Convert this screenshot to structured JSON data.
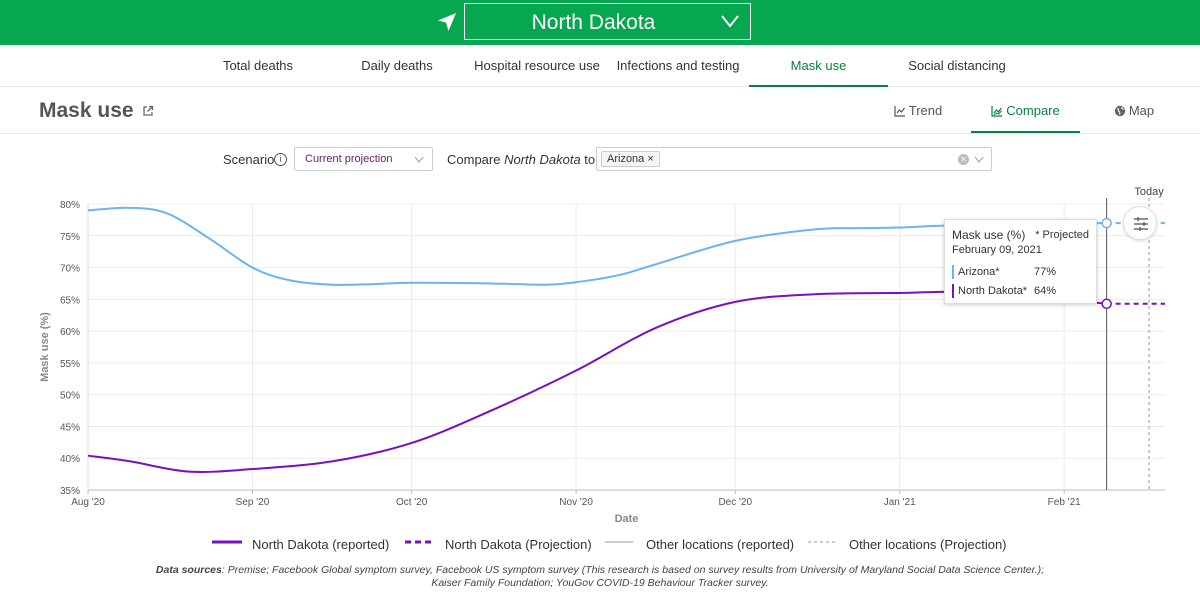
{
  "location": {
    "selected": "North Dakota"
  },
  "tabs": [
    {
      "label": "Total deaths",
      "active": false
    },
    {
      "label": "Daily deaths",
      "active": false
    },
    {
      "label": "Hospital resource use",
      "active": false
    },
    {
      "label": "Infections and testing",
      "active": false
    },
    {
      "label": "Mask use",
      "active": true
    },
    {
      "label": "Social distancing",
      "active": false
    }
  ],
  "header": {
    "title": "Mask use",
    "views": [
      {
        "label": "Trend",
        "icon": "trend-icon",
        "active": false
      },
      {
        "label": "Compare",
        "icon": "compare-icon",
        "active": true
      },
      {
        "label": "Map",
        "icon": "globe-icon",
        "active": false
      }
    ]
  },
  "controls": {
    "scenario_label": "Scenario",
    "scenario_value": "Current projection",
    "compare_prefix": "Compare ",
    "compare_location": "North Dakota",
    "compare_suffix": " to",
    "compare_chip": "Arizona"
  },
  "tooltip": {
    "title": "Mask use (%)",
    "projected_note": "* Projected",
    "date": "February 09, 2021",
    "rows": [
      {
        "name": "Arizona*",
        "value": "77%",
        "color": "#6cb4f0"
      },
      {
        "name": "North Dakota*",
        "value": "64%",
        "color": "#7a0fbf"
      }
    ]
  },
  "chart_data": {
    "type": "line",
    "title": "",
    "xlabel": "Date",
    "ylabel": "Mask use (%)",
    "today_label": "Today",
    "ylim": [
      35,
      80
    ],
    "yticks": [
      "35%",
      "40%",
      "45%",
      "50%",
      "55%",
      "60%",
      "65%",
      "70%",
      "75%",
      "80%"
    ],
    "xticks": [
      "Aug '20",
      "Sep '20",
      "Oct '20",
      "Nov '20",
      "Dec '20",
      "Jan '21",
      "Feb '21"
    ],
    "xtick_dates": [
      "2020-08-01",
      "2020-09-01",
      "2020-10-01",
      "2020-11-01",
      "2020-12-01",
      "2021-01-01",
      "2021-02-01"
    ],
    "xlim": [
      "2020-08-01",
      "2021-02-20"
    ],
    "hover_date": "2021-02-09",
    "today_date": "2021-02-17",
    "grid": true,
    "series": [
      {
        "name": "Arizona",
        "color": "#6cb4f0",
        "reported": [
          [
            "2020-08-01",
            79.0
          ],
          [
            "2020-08-09",
            79.4
          ],
          [
            "2020-08-16",
            78.5
          ],
          [
            "2020-08-24",
            74.5
          ],
          [
            "2020-09-01",
            70.0
          ],
          [
            "2020-09-08",
            68.0
          ],
          [
            "2020-09-16",
            67.3
          ],
          [
            "2020-09-24",
            67.4
          ],
          [
            "2020-10-01",
            67.6
          ],
          [
            "2020-10-16",
            67.5
          ],
          [
            "2020-10-26",
            67.3
          ],
          [
            "2020-11-01",
            67.7
          ],
          [
            "2020-11-09",
            68.8
          ],
          [
            "2020-11-16",
            70.5
          ],
          [
            "2020-12-01",
            74.2
          ],
          [
            "2020-12-16",
            76.0
          ],
          [
            "2020-12-24",
            76.2
          ],
          [
            "2021-01-01",
            76.3
          ],
          [
            "2021-01-16",
            76.8
          ],
          [
            "2021-02-09",
            77.0
          ]
        ],
        "projected": [
          [
            "2021-02-09",
            77.0
          ],
          [
            "2021-02-20",
            77.0
          ]
        ]
      },
      {
        "name": "North Dakota",
        "color": "#7a0fbf",
        "reported": [
          [
            "2020-08-01",
            40.4
          ],
          [
            "2020-08-09",
            39.5
          ],
          [
            "2020-08-20",
            37.9
          ],
          [
            "2020-09-01",
            38.3
          ],
          [
            "2020-09-16",
            39.5
          ],
          [
            "2020-10-01",
            42.4
          ],
          [
            "2020-10-16",
            47.5
          ],
          [
            "2020-11-01",
            53.8
          ],
          [
            "2020-11-16",
            60.5
          ],
          [
            "2020-12-01",
            64.6
          ],
          [
            "2020-12-16",
            65.8
          ],
          [
            "2021-01-01",
            66.0
          ],
          [
            "2021-01-16",
            66.1
          ],
          [
            "2021-02-09",
            64.3
          ]
        ],
        "projected": [
          [
            "2021-02-09",
            64.3
          ],
          [
            "2021-02-20",
            64.3
          ]
        ]
      }
    ]
  },
  "legend": {
    "items": [
      {
        "label": "North Dakota (reported)"
      },
      {
        "label": "North Dakota (Projection)"
      },
      {
        "label": "Other locations (reported)"
      },
      {
        "label": "Other locations (Projection)"
      }
    ]
  },
  "sources": {
    "label": "Data sources",
    "text": ": Premise; Facebook Global symptom survey, Facebook US symptom survey (This research is based on survey results from University of Maryland Social Data Science Center.); Kaiser Family Foundation; YouGov COVID-19 Behaviour Tracker survey."
  }
}
